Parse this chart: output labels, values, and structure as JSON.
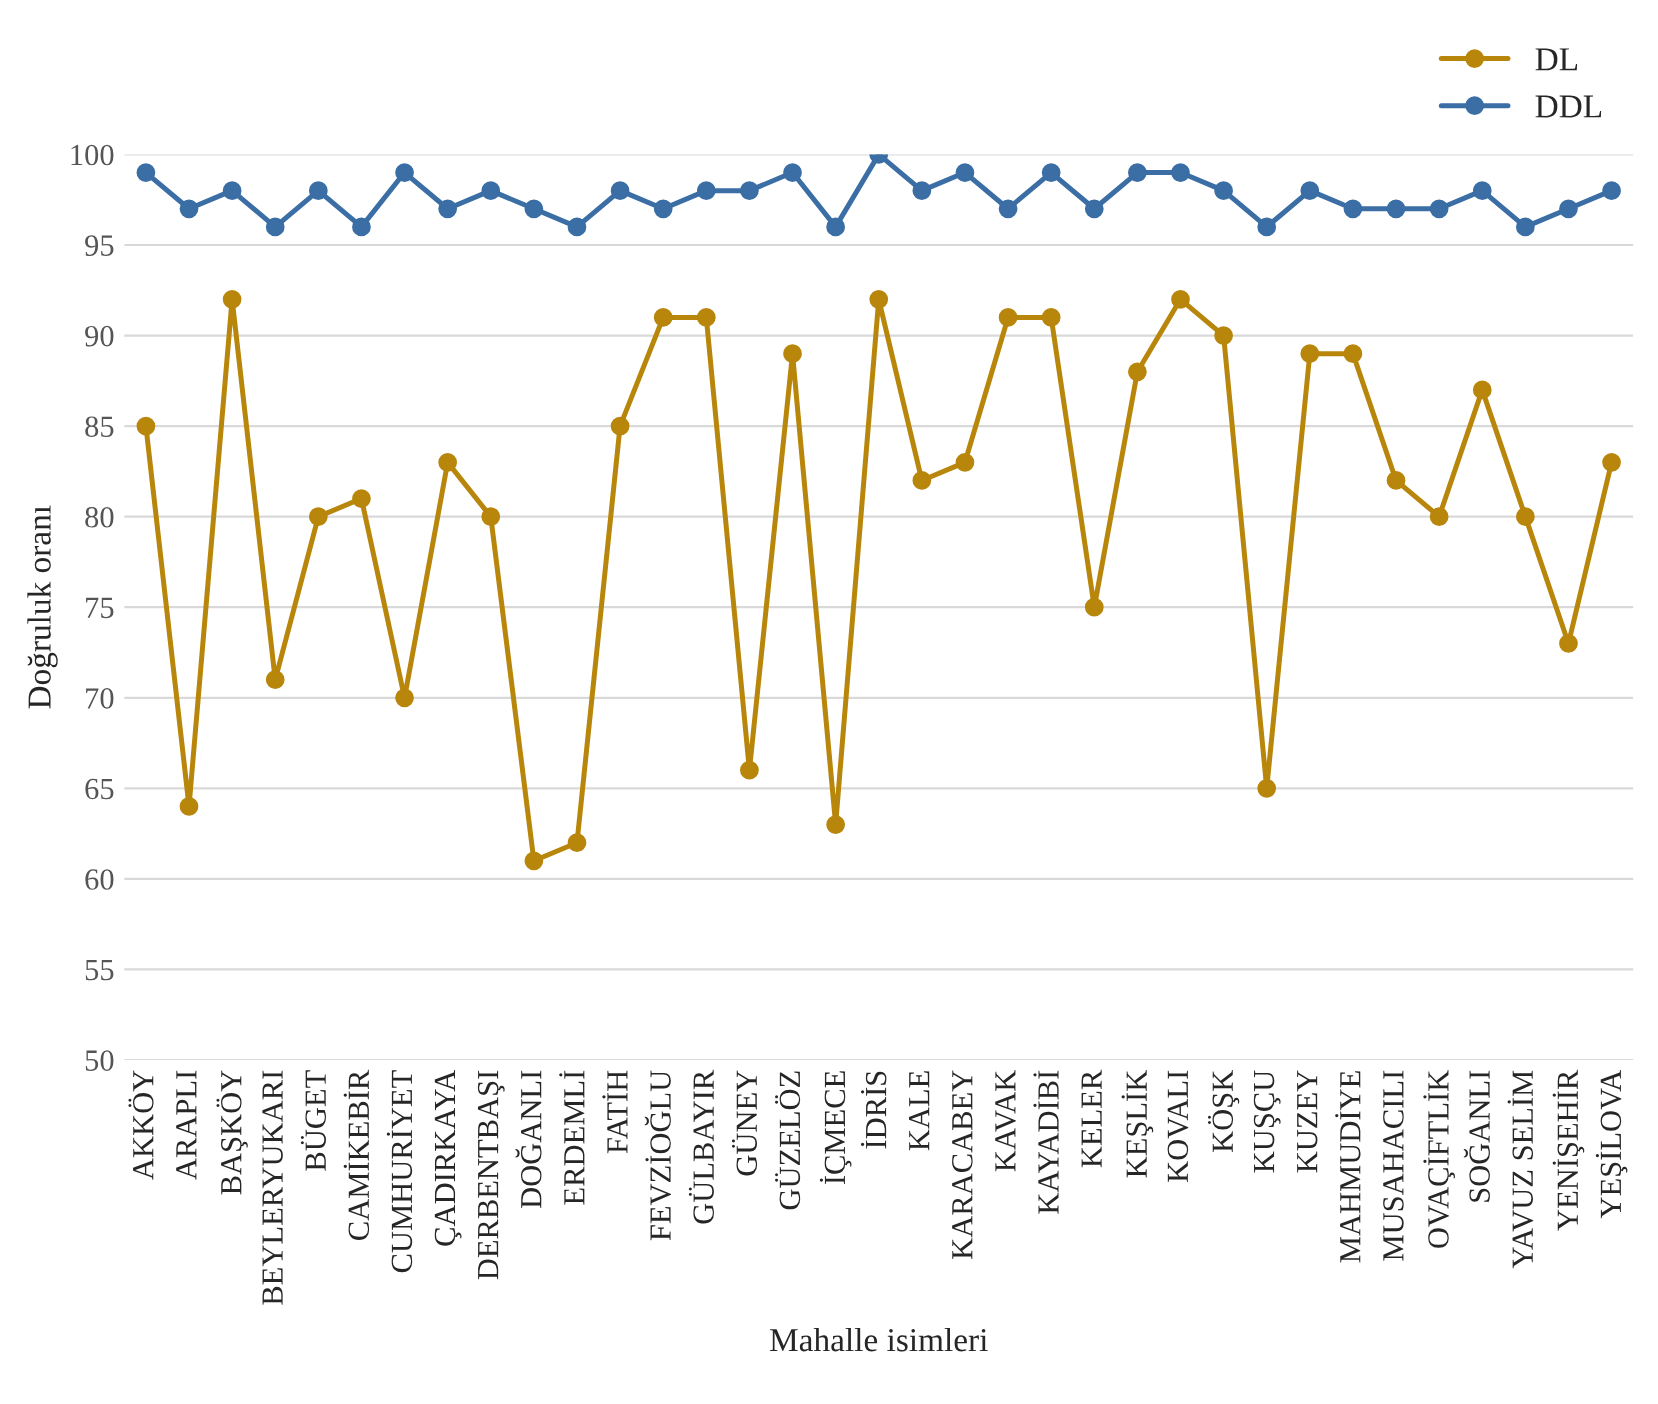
{
  "chart_data": {
    "type": "line",
    "xlabel": "Mahalle isimleri",
    "ylabel": "Doğruluk oranı",
    "categories": [
      "AKKÖY",
      "ARAPLI",
      "BAŞKÖY",
      "BEYLERYUKARI",
      "BÜGET",
      "CAMİKEBİR",
      "CUMHURİYET",
      "ÇADIRKAYA",
      "DERBENTBAŞI",
      "DOĞANLI",
      "ERDEMLİ",
      "FATİH",
      "FEVZİOĞLU",
      "GÜLBAYIR",
      "GÜNEY",
      "GÜZELÖZ",
      "İÇMECE",
      "İDRİS",
      "KALE",
      "KARACABEY",
      "KAVAK",
      "KAYADİBİ",
      "KELER",
      "KEŞLİK",
      "KOVALI",
      "KÖŞK",
      "KUŞÇU",
      "KUZEY",
      "MAHMUDİYE",
      "MUSAHACILI",
      "OVAÇİFTLİK",
      "SOĞANLI",
      "YAVUZ SELİM",
      "YENİŞEHİR",
      "YEŞİLOVA"
    ],
    "series": [
      {
        "name": "DL",
        "color": "#b8860b",
        "values": [
          85,
          64,
          92,
          71,
          80,
          81,
          70,
          83,
          80,
          61,
          62,
          85,
          91,
          91,
          66,
          89,
          63,
          92,
          82,
          83,
          91,
          91,
          75,
          88,
          92,
          90,
          65,
          89,
          89,
          82,
          80,
          87,
          80,
          73,
          83
        ]
      },
      {
        "name": "DDL",
        "color": "#3a6ea5",
        "values": [
          99,
          97,
          98,
          96,
          98,
          96,
          99,
          97,
          98,
          97,
          96,
          98,
          97,
          98,
          98,
          99,
          96,
          100,
          98,
          99,
          97,
          99,
          97,
          99,
          99,
          98,
          96,
          98,
          97,
          97,
          97,
          98,
          96,
          97,
          98
        ]
      }
    ],
    "ylim": [
      50,
      100
    ],
    "yticks": [
      50,
      55,
      60,
      65,
      70,
      75,
      80,
      85,
      90,
      95,
      100
    ],
    "grid": "y",
    "legend": "top right",
    "marker": "circle",
    "line_style": "solid"
  }
}
